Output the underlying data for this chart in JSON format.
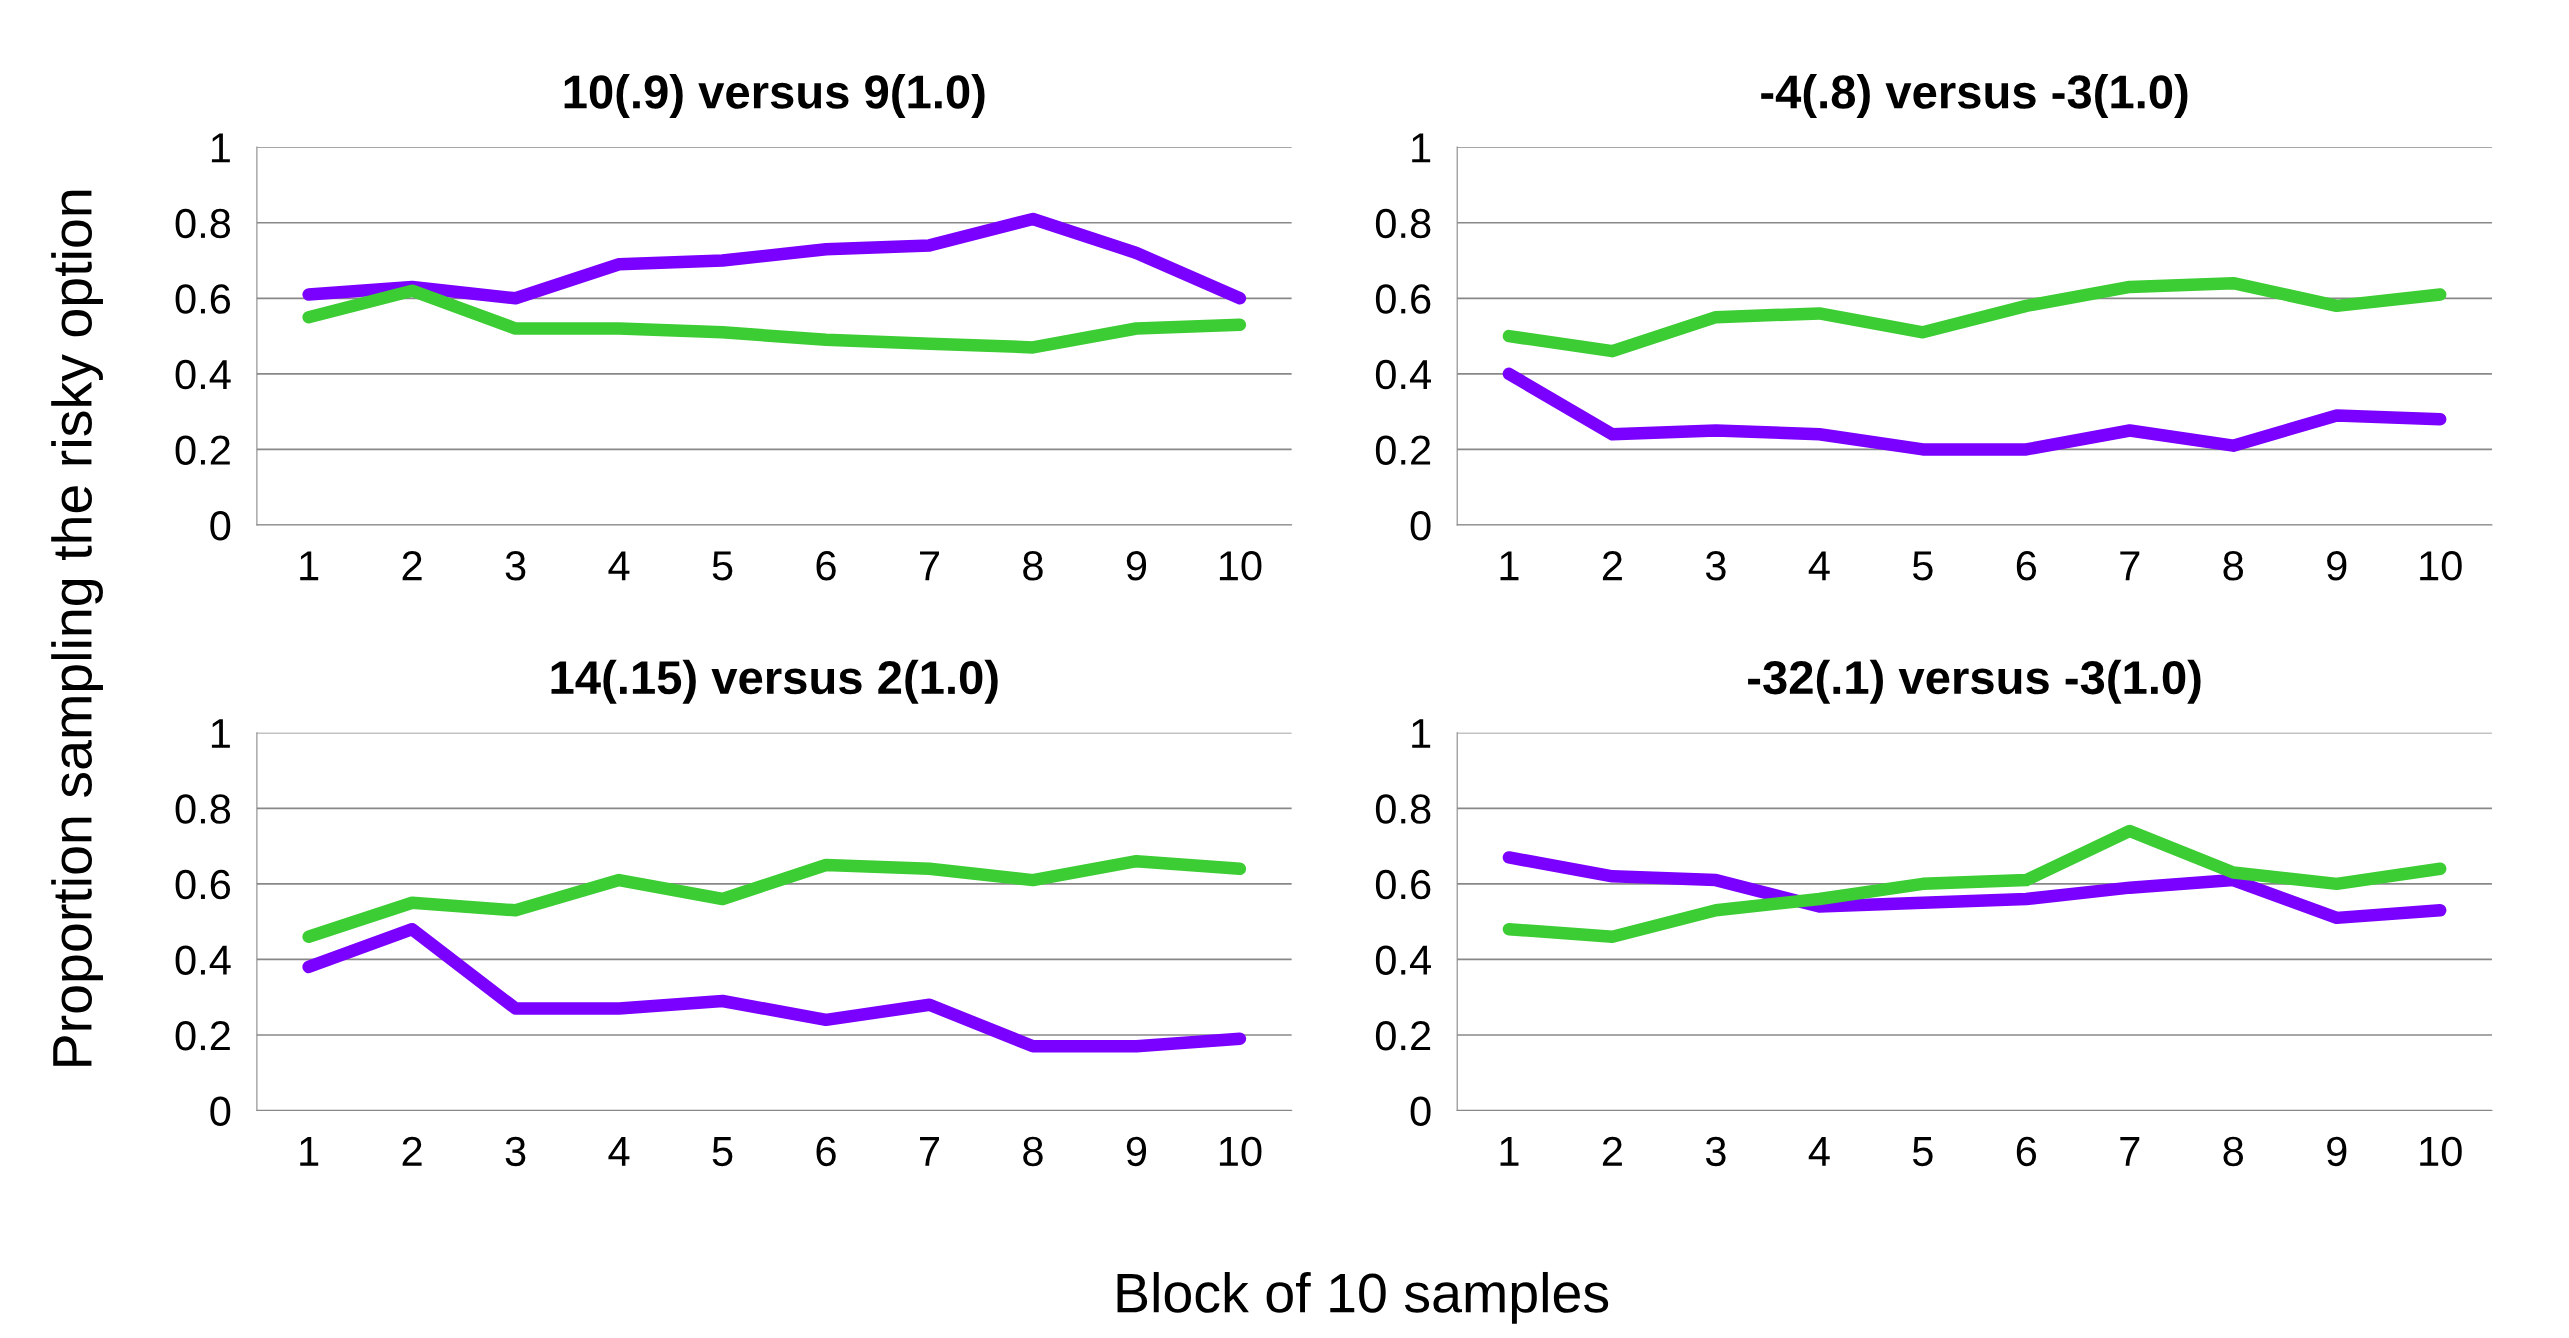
{
  "chart_data": [
    {
      "type": "line",
      "title": "10(.9) versus 9(1.0)",
      "ylabel": "Proportion sampling the risky option",
      "categories": [
        "1",
        "2",
        "3",
        "4",
        "5",
        "6",
        "7",
        "8",
        "9",
        "10"
      ],
      "ylim": [
        0,
        1
      ],
      "yticks": [
        0,
        0.2,
        0.4,
        0.6,
        0.8,
        1
      ],
      "grid": "y",
      "legend": false,
      "series": [
        {
          "color": "#7a00ff",
          "values": [
            0.61,
            0.63,
            0.6,
            0.69,
            0.7,
            0.73,
            0.74,
            0.81,
            0.72,
            0.6
          ]
        },
        {
          "color": "#3ccc33",
          "values": [
            0.55,
            0.62,
            0.52,
            0.52,
            0.51,
            0.49,
            0.48,
            0.47,
            0.52,
            0.53
          ]
        }
      ]
    },
    {
      "type": "line",
      "title": "-4(.8) versus -3(1.0)",
      "categories": [
        "1",
        "2",
        "3",
        "4",
        "5",
        "6",
        "7",
        "8",
        "9",
        "10"
      ],
      "ylim": [
        0,
        1
      ],
      "yticks": [
        0,
        0.2,
        0.4,
        0.6,
        0.8,
        1
      ],
      "grid": "y",
      "legend": false,
      "series": [
        {
          "color": "#7a00ff",
          "values": [
            0.4,
            0.24,
            0.25,
            0.24,
            0.2,
            0.2,
            0.25,
            0.21,
            0.29,
            0.28
          ]
        },
        {
          "color": "#3ccc33",
          "values": [
            0.5,
            0.46,
            0.55,
            0.56,
            0.51,
            0.58,
            0.63,
            0.64,
            0.58,
            0.61
          ]
        }
      ]
    },
    {
      "type": "line",
      "title": "14(.15) versus 2(1.0)",
      "xlabel": "Block of 10 samples",
      "categories": [
        "1",
        "2",
        "3",
        "4",
        "5",
        "6",
        "7",
        "8",
        "9",
        "10"
      ],
      "ylim": [
        0,
        1
      ],
      "yticks": [
        0,
        0.2,
        0.4,
        0.6,
        0.8,
        1
      ],
      "grid": "y",
      "legend": false,
      "series": [
        {
          "color": "#7a00ff",
          "values": [
            0.38,
            0.48,
            0.27,
            0.27,
            0.29,
            0.24,
            0.28,
            0.17,
            0.17,
            0.19
          ]
        },
        {
          "color": "#3ccc33",
          "values": [
            0.46,
            0.55,
            0.53,
            0.61,
            0.56,
            0.65,
            0.64,
            0.61,
            0.66,
            0.64
          ]
        }
      ]
    },
    {
      "type": "line",
      "title": "-32(.1) versus -3(1.0)",
      "categories": [
        "1",
        "2",
        "3",
        "4",
        "5",
        "6",
        "7",
        "8",
        "9",
        "10"
      ],
      "ylim": [
        0,
        1
      ],
      "yticks": [
        0,
        0.2,
        0.4,
        0.6,
        0.8,
        1
      ],
      "grid": "y",
      "legend": false,
      "series": [
        {
          "color": "#7a00ff",
          "values": [
            0.67,
            0.62,
            0.61,
            0.54,
            0.55,
            0.56,
            0.59,
            0.61,
            0.51,
            0.53
          ]
        },
        {
          "color": "#3ccc33",
          "values": [
            0.48,
            0.46,
            0.53,
            0.56,
            0.6,
            0.61,
            0.74,
            0.63,
            0.6,
            0.64
          ]
        }
      ]
    }
  ]
}
